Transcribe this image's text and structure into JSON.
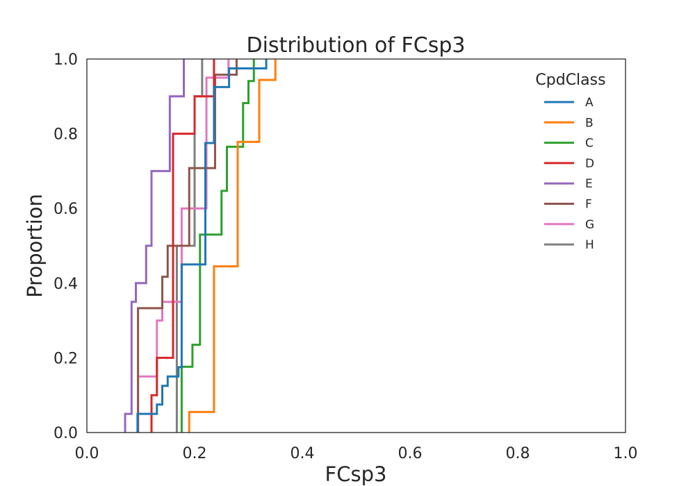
{
  "chart_data": {
    "type": "line",
    "subtype": "ecdf-step",
    "title": "Distribution of FCsp3",
    "xlabel": "FCsp3",
    "ylabel": "Proportion",
    "xlim": [
      0.0,
      1.0
    ],
    "ylim": [
      0.0,
      1.0
    ],
    "xticks": [
      "0.0",
      "0.2",
      "0.4",
      "0.6",
      "0.8",
      "1.0"
    ],
    "yticks": [
      "0.0",
      "0.2",
      "0.4",
      "0.6",
      "0.8",
      "1.0"
    ],
    "grid": false,
    "legend": {
      "title": "CpdClass",
      "position": "top-right"
    },
    "series": [
      {
        "name": "A",
        "color": "#1f77b4",
        "x": [
          0.094,
          0.13,
          0.14,
          0.15,
          0.17,
          0.176,
          0.22,
          0.236,
          0.264,
          0.3,
          0.31,
          0.333
        ],
        "y": [
          0.05,
          0.075,
          0.125,
          0.15,
          0.175,
          0.45,
          0.775,
          0.925,
          0.975,
          0.975,
          0.975,
          1.0
        ]
      },
      {
        "name": "B",
        "color": "#ff7f0e",
        "x": [
          0.19,
          0.236,
          0.28,
          0.29,
          0.32,
          0.325,
          0.35
        ],
        "y": [
          0.055,
          0.445,
          0.778,
          0.778,
          0.944,
          0.944,
          1.0
        ]
      },
      {
        "name": "C",
        "color": "#2ca02c",
        "x": [
          0.176,
          0.196,
          0.21,
          0.22,
          0.25,
          0.26,
          0.273,
          0.29,
          0.3,
          0.305,
          0.31
        ],
        "y": [
          0.176,
          0.235,
          0.53,
          0.53,
          0.647,
          0.765,
          0.765,
          0.882,
          0.941,
          0.941,
          1.0
        ]
      },
      {
        "name": "D",
        "color": "#d62728",
        "x": [
          0.12,
          0.13,
          0.16,
          0.2,
          0.236
        ],
        "y": [
          0.1,
          0.2,
          0.8,
          0.9,
          1.0
        ]
      },
      {
        "name": "E",
        "color": "#9467bd",
        "x": [
          0.071,
          0.083,
          0.091,
          0.11,
          0.12,
          0.143,
          0.154,
          0.167,
          0.18
        ],
        "y": [
          0.05,
          0.35,
          0.4,
          0.5,
          0.7,
          0.7,
          0.9,
          0.9,
          1.0
        ]
      },
      {
        "name": "F",
        "color": "#8c564b",
        "x": [
          0.095,
          0.14,
          0.15,
          0.167,
          0.19,
          0.238,
          0.25,
          0.278
        ],
        "y": [
          0.333,
          0.417,
          0.5,
          0.5,
          0.708,
          0.958,
          0.958,
          1.0
        ]
      },
      {
        "name": "G",
        "color": "#e377c2",
        "x": [
          0.095,
          0.13,
          0.14,
          0.176,
          0.222,
          0.24,
          0.263
        ],
        "y": [
          0.15,
          0.3,
          0.35,
          0.6,
          0.95,
          0.95,
          1.0
        ]
      },
      {
        "name": "H",
        "color": "#7f7f7f",
        "x": [
          0.167,
          0.2,
          0.214
        ],
        "y": [
          0.5,
          0.9,
          1.0
        ]
      }
    ]
  }
}
